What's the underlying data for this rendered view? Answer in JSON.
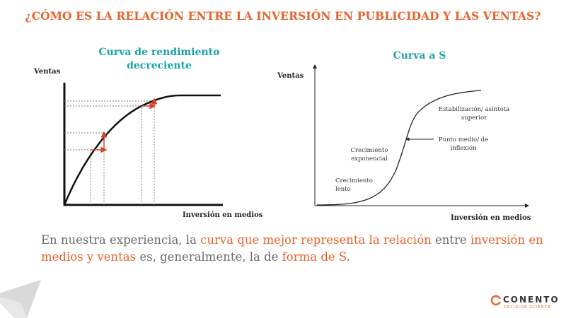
{
  "slide": {
    "title": "¿CÓMO ES LA RELACIÓN ENTRE LA INVERSIÓN EN PUBLICIDAD Y LAS VENTAS?",
    "accent_color": "#e8622b",
    "chart_title_color": "#1aa3a8",
    "text_color": "#6b6b6b"
  },
  "left_chart": {
    "title_line1": "Curva de rendimiento",
    "title_line2": "decreciente",
    "y_label": "Ventas",
    "x_label": "Inversión  en medios"
  },
  "right_chart": {
    "title": "Curva a S",
    "y_label": "Ventas",
    "x_label": "Inversión  en medios",
    "annotations": {
      "stabilization_line1": "Estabilización/  asíntota",
      "stabilization_line2": "superior",
      "midpoint_line1": "Punto medio/  de",
      "midpoint_line2": "inflexión",
      "exp_line1": "Crecimiento",
      "exp_line2": "exponencial",
      "slow_line1": "Crecimiento",
      "slow_line2": "lento"
    }
  },
  "body": {
    "p1": "En nuestra experiencia, la ",
    "h1": "curva que mejor representa la relación",
    "p2": " entre ",
    "h2": "inversión en medios y ventas",
    "p3": " es, generalmente, la de ",
    "h3": "forma de S",
    "p4": "."
  },
  "logo": {
    "word": "CONENTO",
    "sub": "DECISION SCIENCE"
  }
}
